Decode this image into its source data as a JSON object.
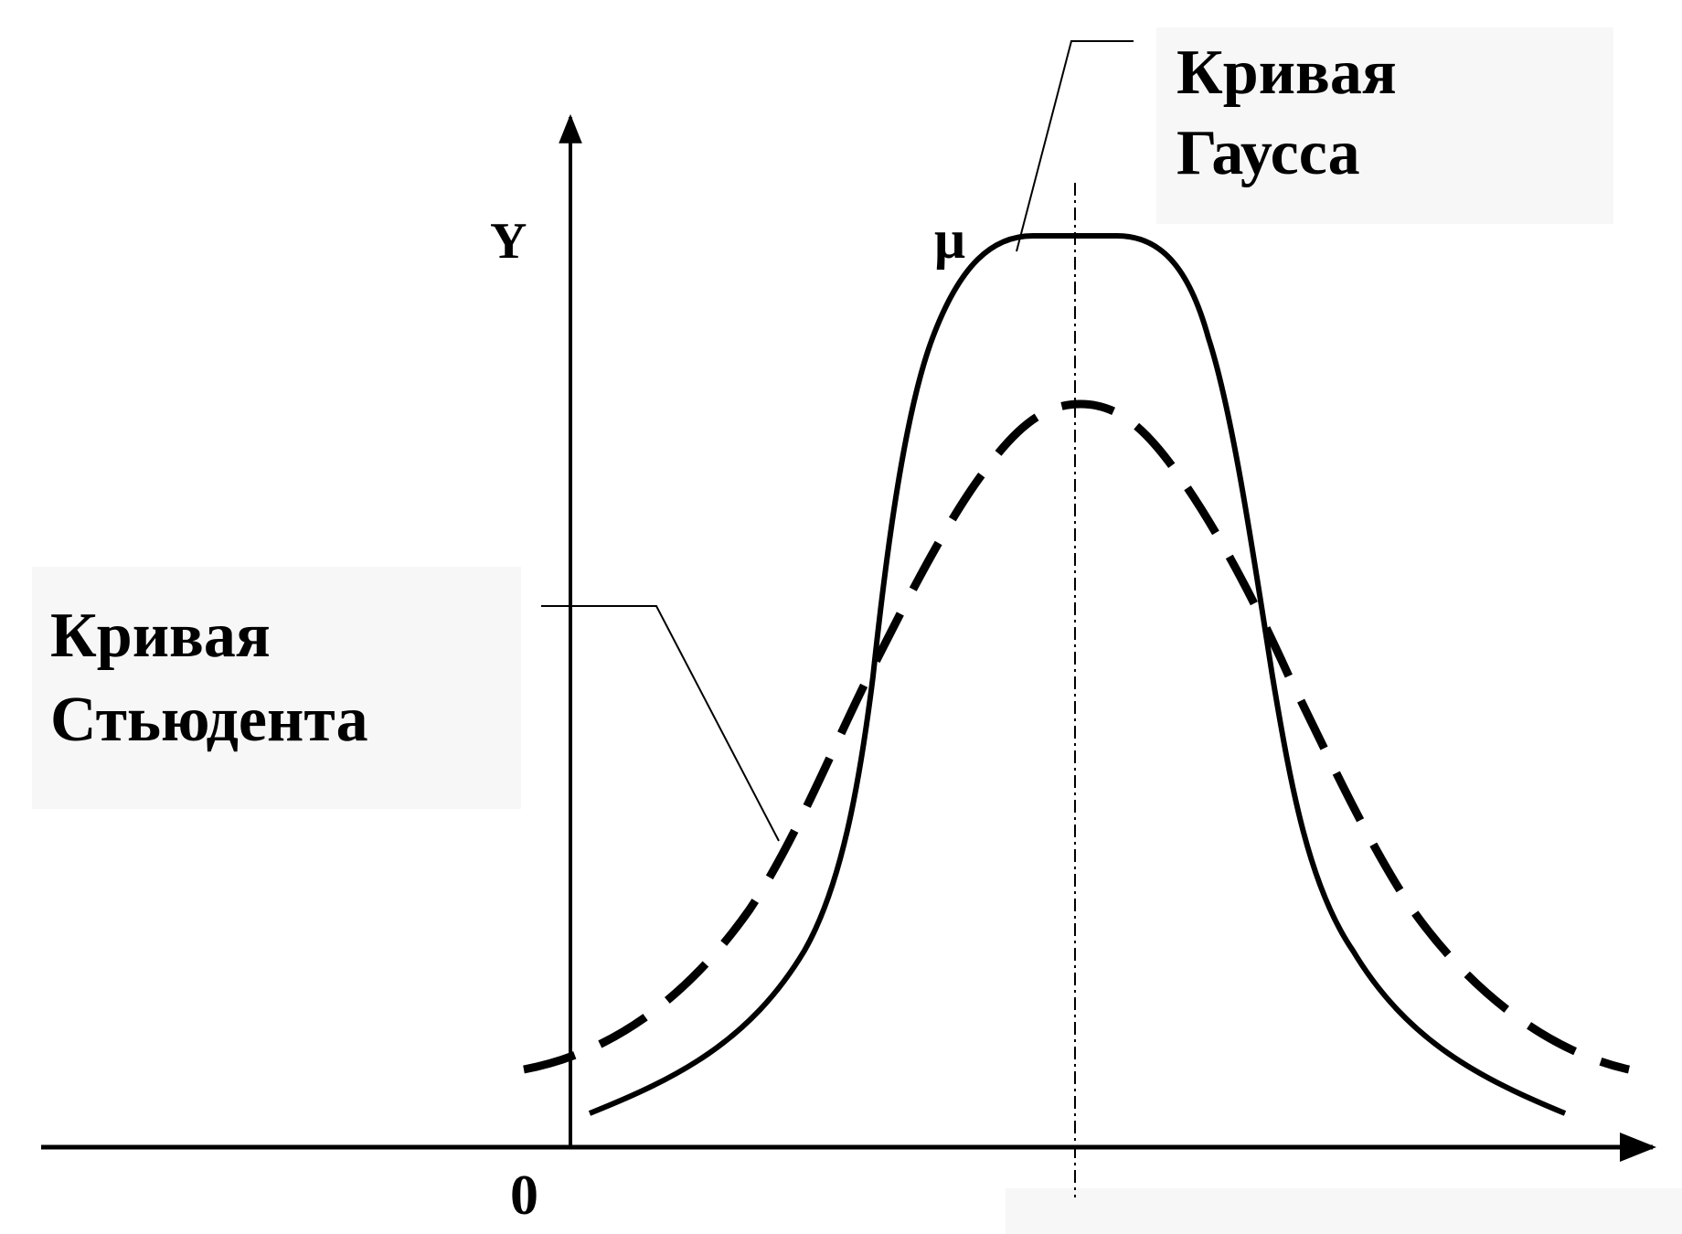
{
  "figure": {
    "gauss_label": [
      "Кривая",
      "Гаусса"
    ],
    "student_label": [
      "Кривая",
      "Стьюдента"
    ],
    "mu_label": "μ",
    "y_axis_label": "Y",
    "origin_label": "0"
  },
  "colors": {
    "ink": "#000000",
    "background": "#ffffff",
    "label_panel": "#f7f7f7"
  }
}
